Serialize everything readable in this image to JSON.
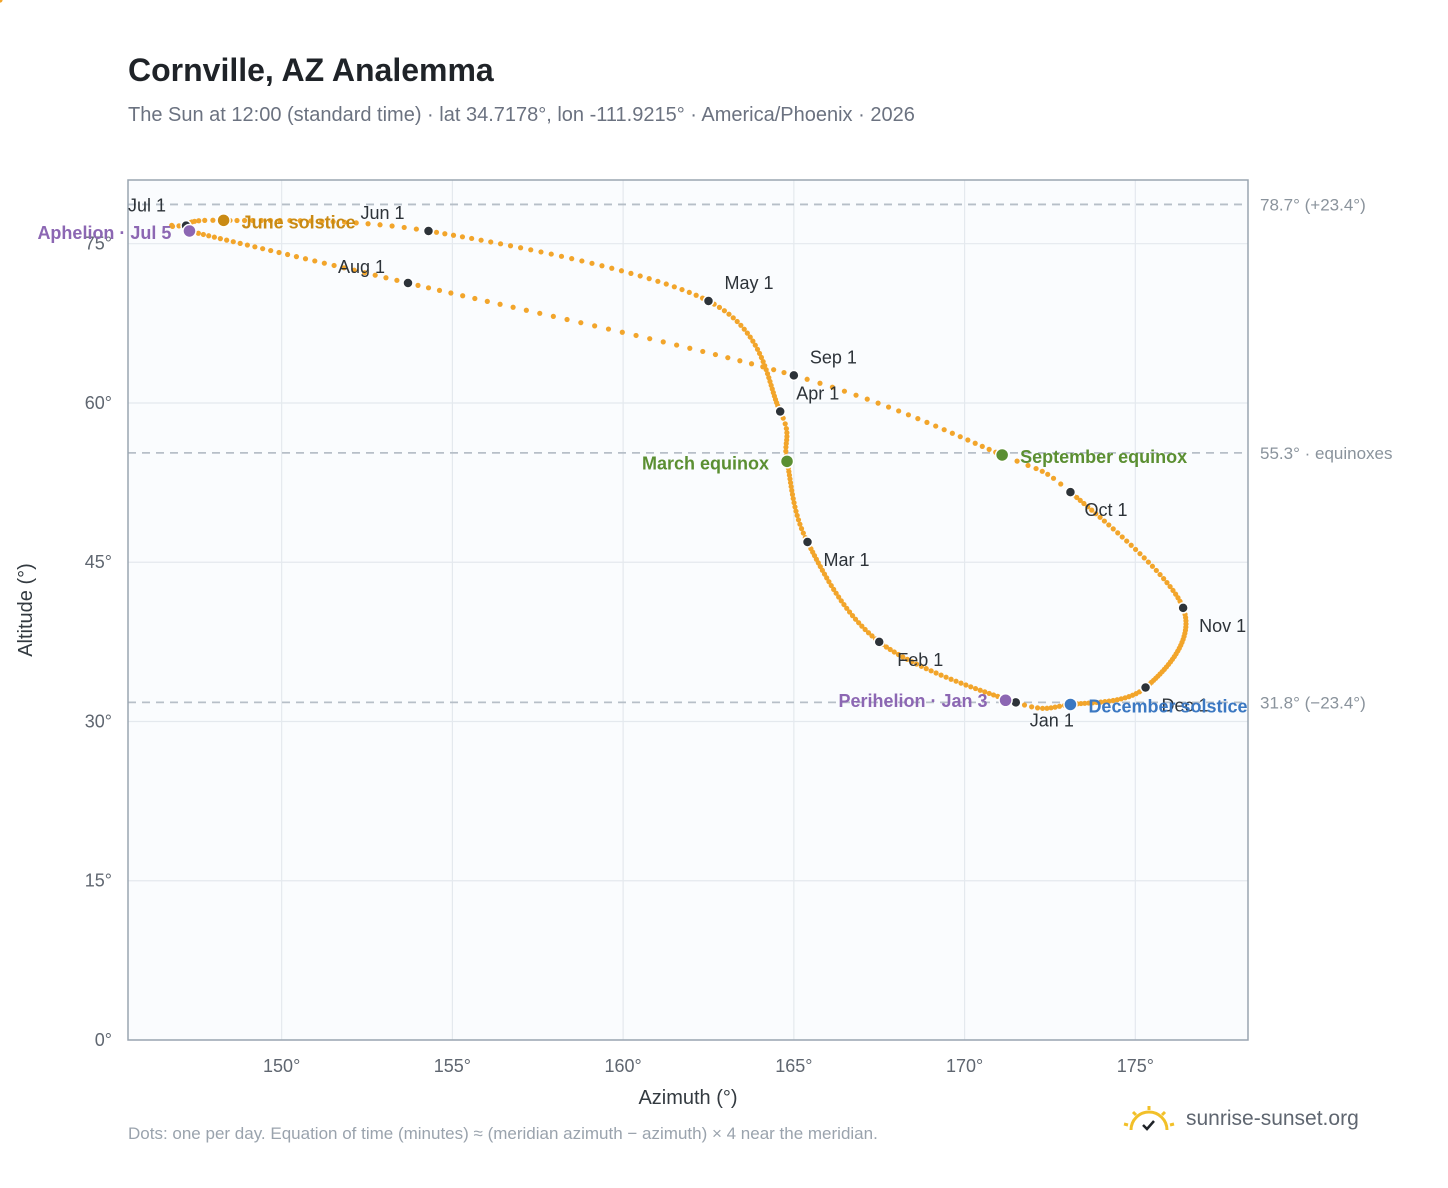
{
  "header": {
    "title": "Cornville, AZ Analemma",
    "subtitle": "The Sun at 12:00 (standard time) · lat 34.7178°, lon -111.9215° · America/Phoenix · 2026"
  },
  "footer": {
    "note": "Dots: one per day. Equation of time (minutes) ≈ (meridian azimuth − azimuth) × 4 near the meridian.",
    "brand": "sunrise-sunset.org",
    "brand_icon": "sun-check-icon"
  },
  "colors": {
    "curve": "#f2a52b",
    "month_marker": "#2d3339",
    "aphelion_perihelion": "#8c67b3",
    "june_solstice": "#c98a14",
    "equinox": "#5b8f32",
    "december_solstice": "#3b78c2",
    "reference_line": "#b7bfc8",
    "plot_background": "#fafcfe"
  },
  "chart_data": {
    "type": "scatter",
    "xlabel": "Azimuth (°)",
    "ylabel": "Altitude (°)",
    "xlim": [
      145.5,
      178.3
    ],
    "ylim": [
      0,
      81
    ],
    "x_ticks": [
      150,
      155,
      160,
      165,
      170,
      175
    ],
    "y_ticks": [
      0,
      15,
      30,
      45,
      60,
      75
    ],
    "x_tick_labels": [
      "150°",
      "155°",
      "160°",
      "165°",
      "170°",
      "175°"
    ],
    "y_tick_labels": [
      "0°",
      "15°",
      "30°",
      "45°",
      "60°",
      "75°"
    ],
    "grid": true,
    "reference_lines": [
      {
        "y": 78.7,
        "label": "78.7° (+23.4°)"
      },
      {
        "y": 55.3,
        "label": "55.3° · equinoxes"
      },
      {
        "y": 31.8,
        "label": "31.8° (−23.4°)"
      }
    ],
    "series": [
      {
        "anchor_days": [
          0,
          31,
          59,
          79,
          90,
          120,
          151,
          171,
          181,
          185,
          212,
          243,
          265,
          273,
          304,
          334,
          354,
          364
        ],
        "anchor_azimuth": [
          171.5,
          167.5,
          165.4,
          164.8,
          164.6,
          162.5,
          154.3,
          148.3,
          147.2,
          147.3,
          153.7,
          165.0,
          171.1,
          173.1,
          176.4,
          175.3,
          173.1,
          171.5
        ],
        "anchor_altitude": [
          31.8,
          37.5,
          46.9,
          54.5,
          59.2,
          69.6,
          76.2,
          77.2,
          76.7,
          76.2,
          71.3,
          62.6,
          55.1,
          51.6,
          40.7,
          33.2,
          31.6,
          31.8
        ]
      }
    ],
    "month_markers": [
      {
        "label": "Jan 1",
        "azimuth": 171.5,
        "altitude": 31.8
      },
      {
        "label": "Feb 1",
        "azimuth": 167.5,
        "altitude": 37.5
      },
      {
        "label": "Mar 1",
        "azimuth": 165.4,
        "altitude": 46.9
      },
      {
        "label": "Apr 1",
        "azimuth": 164.6,
        "altitude": 59.2
      },
      {
        "label": "May 1",
        "azimuth": 162.5,
        "altitude": 69.6
      },
      {
        "label": "Jun 1",
        "azimuth": 154.3,
        "altitude": 76.2
      },
      {
        "label": "Jul 1",
        "azimuth": 147.2,
        "altitude": 76.7
      },
      {
        "label": "Aug 1",
        "azimuth": 153.7,
        "altitude": 71.3
      },
      {
        "label": "Sep 1",
        "azimuth": 165.0,
        "altitude": 62.6
      },
      {
        "label": "Oct 1",
        "azimuth": 173.1,
        "altitude": 51.6
      },
      {
        "label": "Nov 1",
        "azimuth": 176.4,
        "altitude": 40.7
      },
      {
        "label": "Dec 1",
        "azimuth": 175.3,
        "altitude": 33.2
      }
    ],
    "events": [
      {
        "label": "Aphelion · Jul 5",
        "azimuth": 147.3,
        "altitude": 76.2,
        "kind": "aphelion_perihelion"
      },
      {
        "label": "June solstice",
        "azimuth": 148.3,
        "altitude": 77.2,
        "kind": "june_solstice"
      },
      {
        "label": "March equinox",
        "azimuth": 164.8,
        "altitude": 54.5,
        "kind": "equinox"
      },
      {
        "label": "September equinox",
        "azimuth": 171.1,
        "altitude": 55.1,
        "kind": "equinox"
      },
      {
        "label": "Perihelion · Jan 3",
        "azimuth": 171.2,
        "altitude": 32.0,
        "kind": "aphelion_perihelion"
      },
      {
        "label": "December solstice",
        "azimuth": 173.1,
        "altitude": 31.6,
        "kind": "december_solstice"
      }
    ]
  }
}
